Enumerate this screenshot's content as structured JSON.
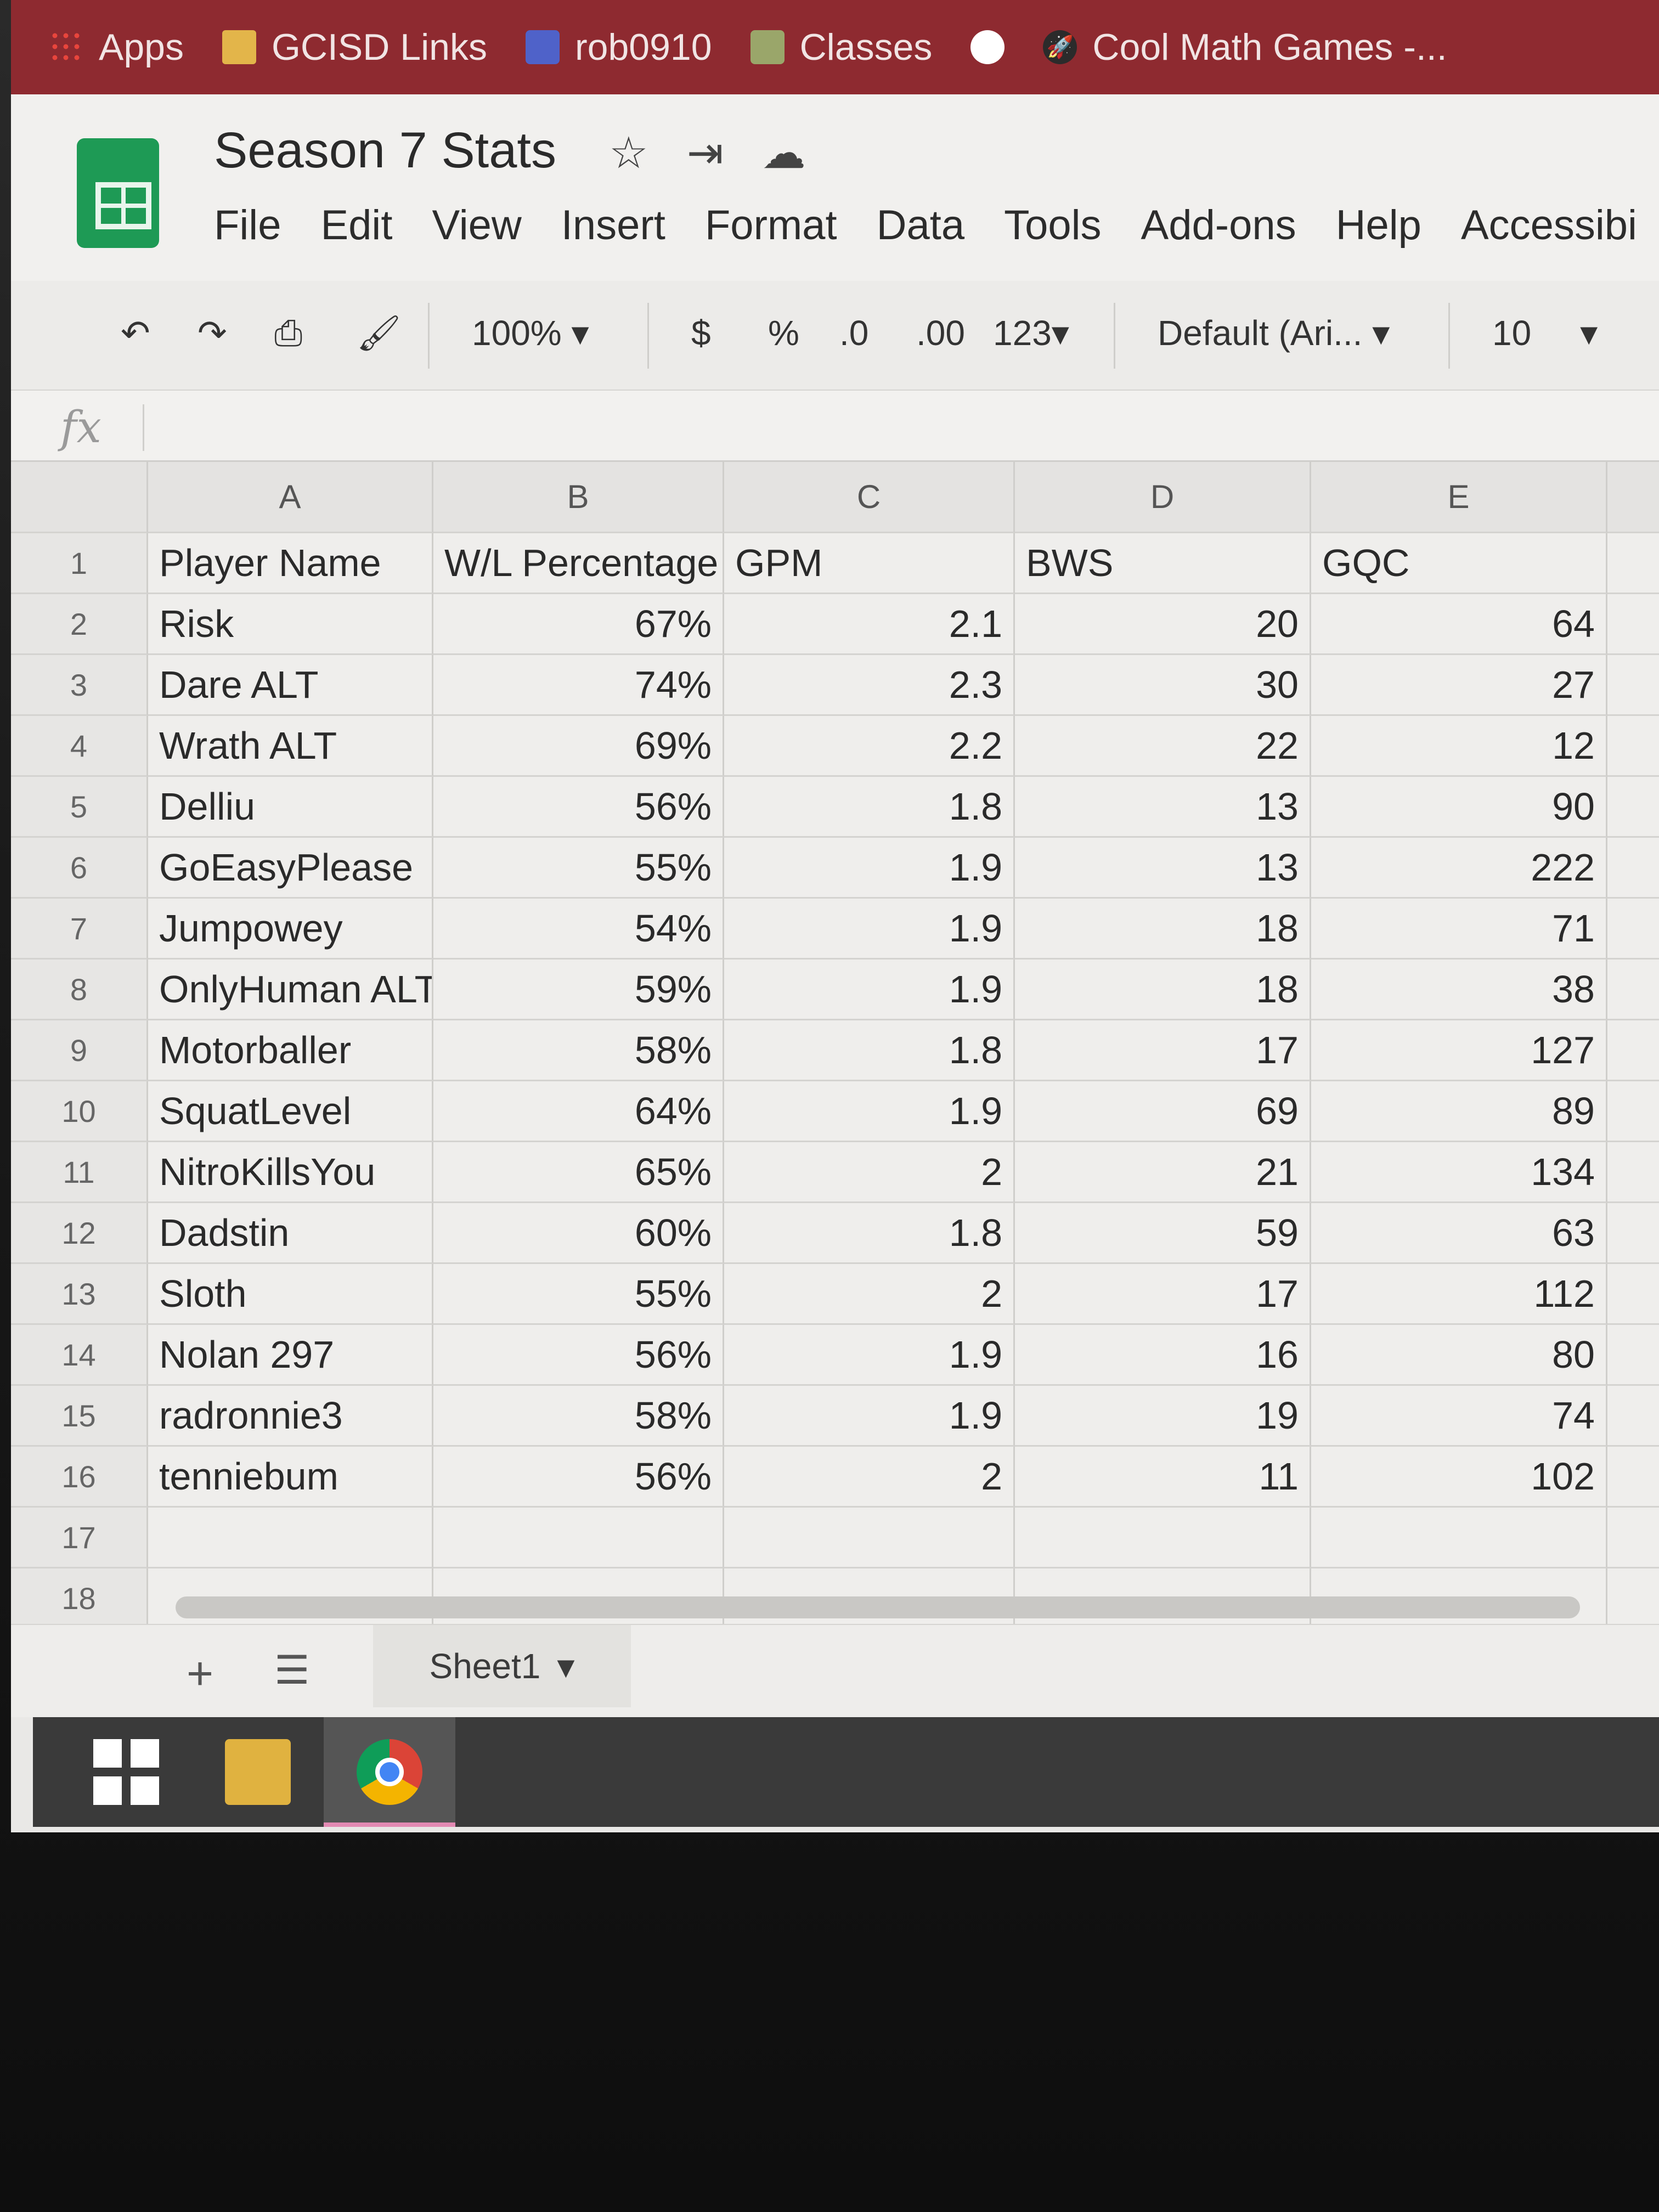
{
  "bookmarks": [
    {
      "label": "Apps",
      "icon": "apps-grid-icon"
    },
    {
      "label": "GCISD Links",
      "icon": "folder-icon"
    },
    {
      "label": "rob0910",
      "icon": "profile-icon"
    },
    {
      "label": "Classes",
      "icon": "classroom-icon"
    },
    {
      "label": "",
      "icon": "globe-icon"
    },
    {
      "label": "Cool Math Games -...",
      "icon": "rocket-icon"
    }
  ],
  "doc": {
    "title": "Season 7 Stats",
    "menu": [
      "File",
      "Edit",
      "View",
      "Insert",
      "Format",
      "Data",
      "Tools",
      "Add-ons",
      "Help",
      "Accessibi"
    ]
  },
  "toolbar": {
    "zoom": "100%",
    "currency": "$",
    "percent": "%",
    "dec_less": ".0",
    "dec_more": ".00",
    "format": "123",
    "font": "Default (Ari...",
    "font_size": "10"
  },
  "formula": {
    "fx": "fx",
    "value": ""
  },
  "columns": [
    "A",
    "B",
    "C",
    "D",
    "E"
  ],
  "rows": [
    {
      "n": "1",
      "cells": [
        "Player Name",
        "W/L Percentage",
        "GPM",
        "BWS",
        "GQC"
      ]
    },
    {
      "n": "2",
      "cells": [
        "Risk",
        "67%",
        "2.1",
        "20",
        "64"
      ]
    },
    {
      "n": "3",
      "cells": [
        " Dare ALT",
        "74%",
        "2.3",
        "30",
        "27"
      ]
    },
    {
      "n": "4",
      "cells": [
        " Wrath ALT",
        "69%",
        "2.2",
        "22",
        "12"
      ]
    },
    {
      "n": "5",
      "cells": [
        "Delliu",
        "56%",
        "1.8",
        "13",
        "90"
      ]
    },
    {
      "n": "6",
      "cells": [
        "GoEasyPlease",
        "55%",
        "1.9",
        "13",
        "222"
      ]
    },
    {
      "n": "7",
      "cells": [
        "Jumpowey",
        "54%",
        "1.9",
        "18",
        "71"
      ]
    },
    {
      "n": "8",
      "cells": [
        "OnlyHuman ALT",
        "59%",
        "1.9",
        "18",
        "38"
      ]
    },
    {
      "n": "9",
      "cells": [
        "Motorballer",
        "58%",
        "1.8",
        "17",
        "127"
      ]
    },
    {
      "n": "10",
      "cells": [
        "SquatLevel",
        "64%",
        "1.9",
        "69",
        "89"
      ]
    },
    {
      "n": "11",
      "cells": [
        "NitroKillsYou",
        "65%",
        "2",
        "21",
        "134"
      ]
    },
    {
      "n": "12",
      "cells": [
        "Dadstin",
        "60%",
        "1.8",
        "59",
        "63"
      ]
    },
    {
      "n": "13",
      "cells": [
        "Sloth",
        "55%",
        "2",
        "17",
        "112"
      ]
    },
    {
      "n": "14",
      "cells": [
        "Nolan 297",
        "56%",
        "1.9",
        "16",
        "80"
      ]
    },
    {
      "n": "15",
      "cells": [
        "radronnie3",
        "58%",
        "1.9",
        "19",
        "74"
      ]
    },
    {
      "n": "16",
      "cells": [
        "tenniebum",
        "56%",
        "2",
        "11",
        "102"
      ]
    },
    {
      "n": "17",
      "cells": [
        "",
        "",
        "",
        "",
        ""
      ]
    },
    {
      "n": "18",
      "cells": [
        "",
        "",
        "",
        "",
        ""
      ]
    }
  ],
  "sheetbar": {
    "add": "+",
    "tab": "Sheet1"
  }
}
